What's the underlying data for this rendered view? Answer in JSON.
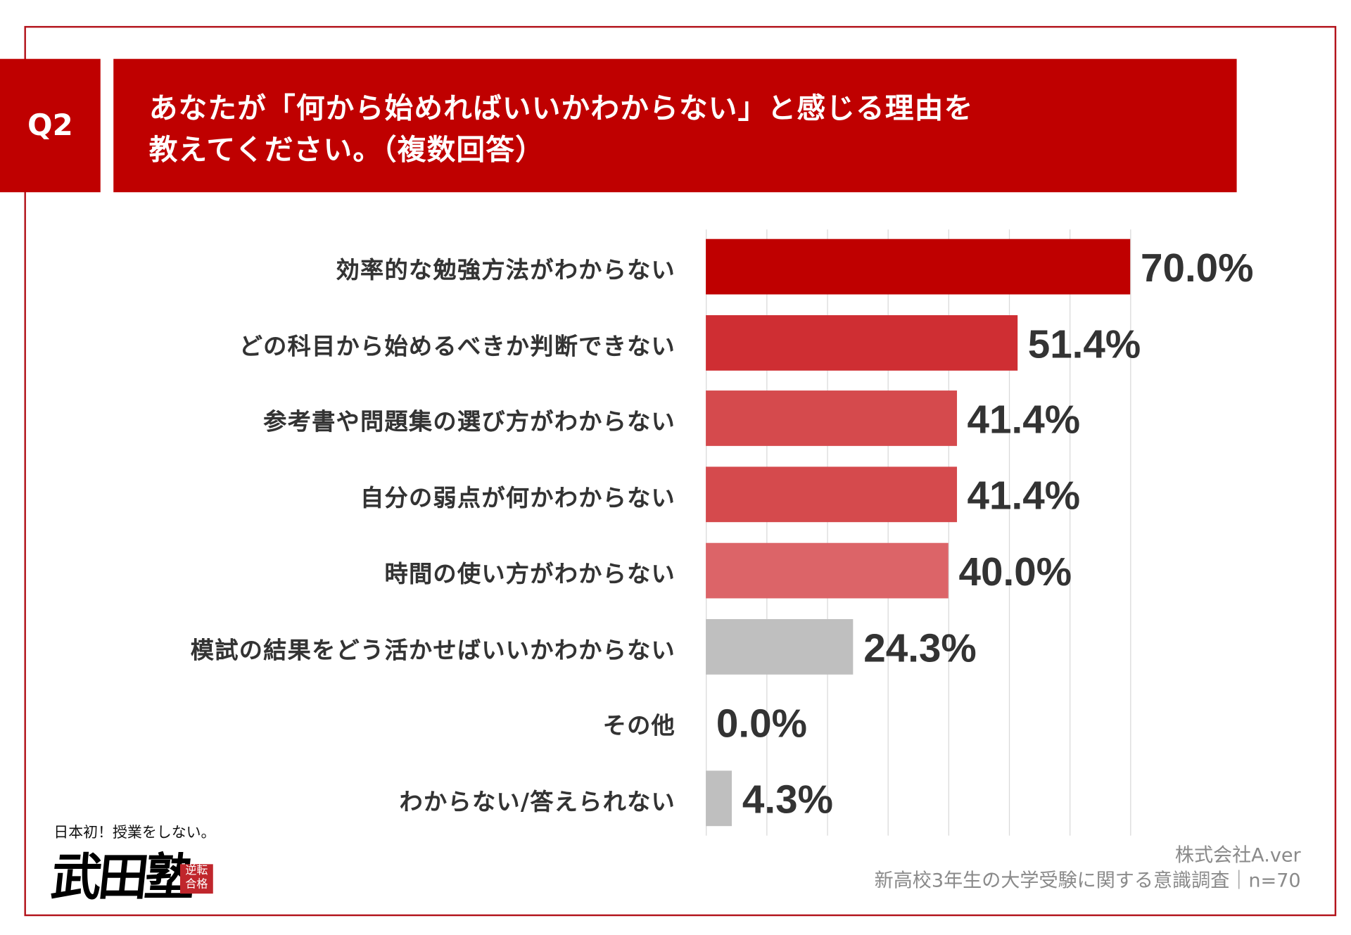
{
  "question_badge": "Q2",
  "title": {
    "line1": "あなたが「何から始めればいいかわからない」と感じる理由を",
    "line2": "教えてください。（複数回答）"
  },
  "chart_data": {
    "type": "bar",
    "orientation": "horizontal",
    "categories": [
      "効率的な勉強方法がわからない",
      "どの科目から始めるべきか判断できない",
      "参考書や問題集の選び方がわからない",
      "自分の弱点が何かわからない",
      "時間の使い方がわからない",
      "模試の結果をどう活かせばいいかわからない",
      "その他",
      "わからない/答えられない"
    ],
    "values": [
      70.0,
      51.4,
      41.4,
      41.4,
      40.0,
      24.3,
      0.0,
      4.3
    ],
    "value_labels": [
      "70.0%",
      "51.4%",
      "41.4%",
      "41.4%",
      "40.0%",
      "24.3%",
      "0.0%",
      "4.3%"
    ],
    "colors": [
      "#bf0000",
      "#cf2e33",
      "#d54a4d",
      "#d54a4d",
      "#dc6468",
      "#bfbfbf",
      "#bfbfbf",
      "#bfbfbf"
    ],
    "xlim": [
      0,
      70
    ],
    "grid_step": 10,
    "grid": true,
    "unit": "%"
  },
  "footer": {
    "company": "株式会社A.ver",
    "survey": "新高校3年生の大学受験に関する意識調査｜n=70"
  },
  "logo": {
    "tagline": "日本初！授業をしない。",
    "name": "武田塾",
    "stamp": "逆転合格"
  }
}
